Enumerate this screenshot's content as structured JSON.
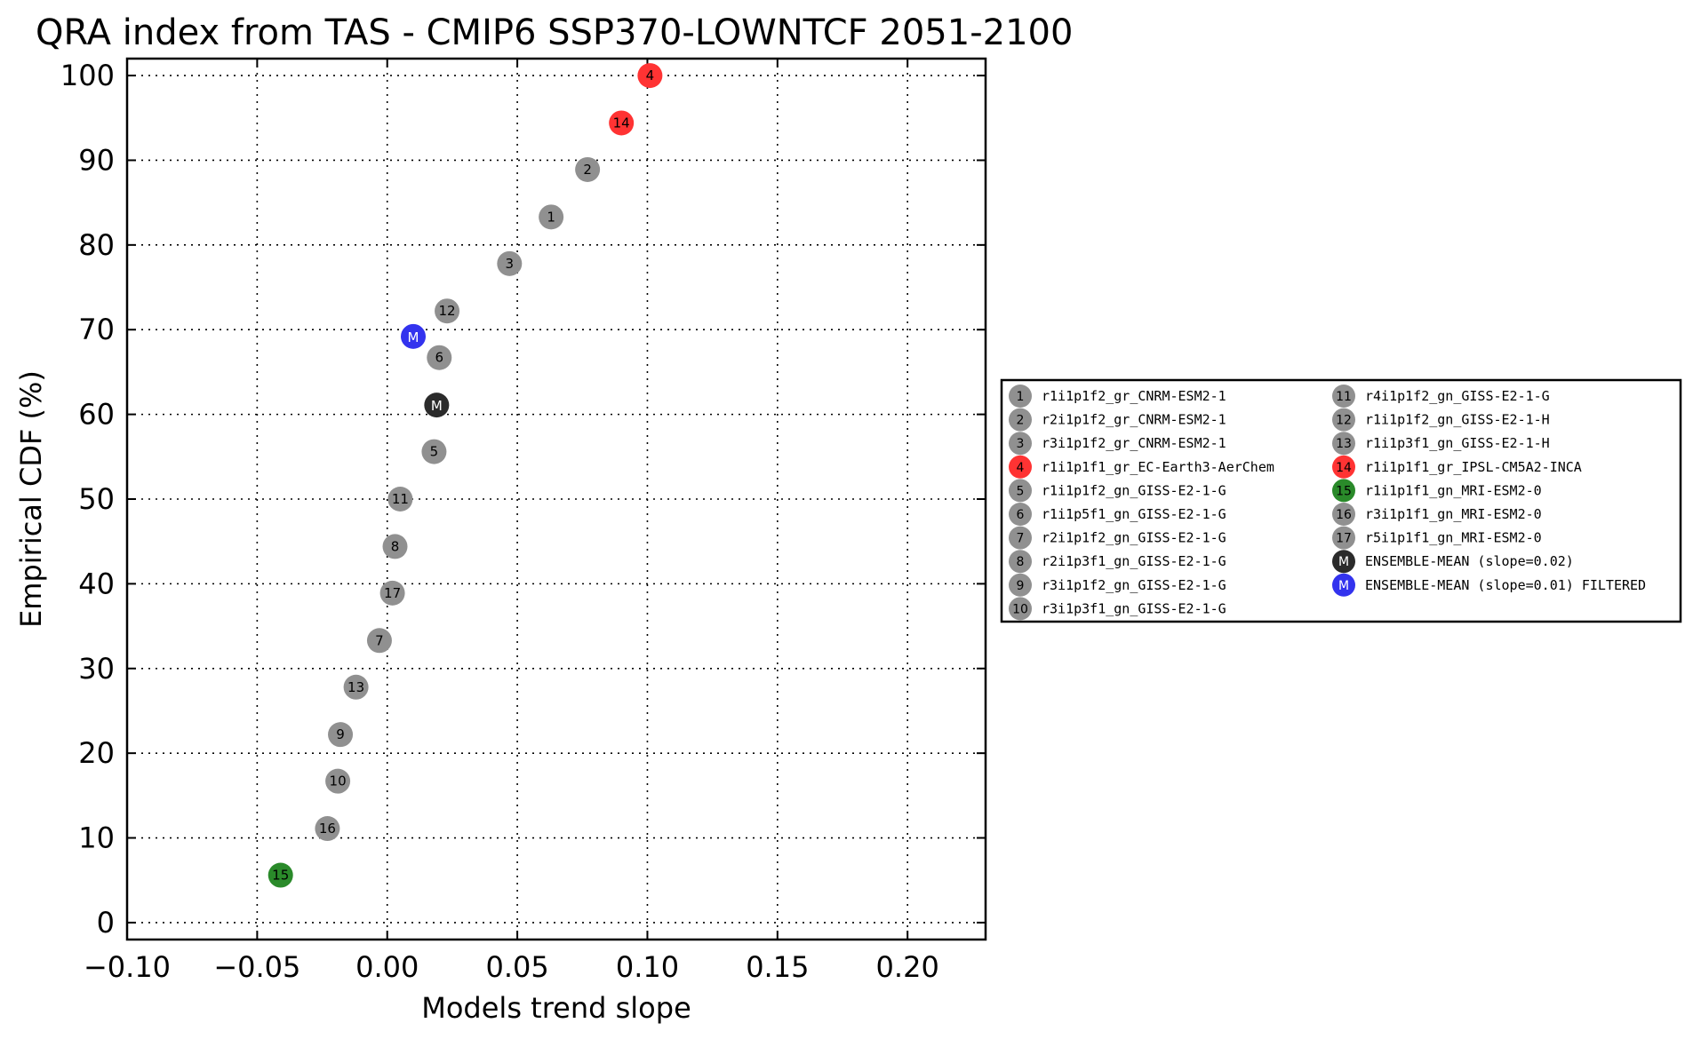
{
  "chart_data": {
    "type": "scatter",
    "title": "QRA index from TAS - CMIP6 SSP370-LOWNTCF 2051-2100",
    "xlabel": "Models trend slope",
    "ylabel": "Empirical CDF (%)",
    "xlim": [
      -0.1,
      0.23
    ],
    "ylim": [
      -2,
      102
    ],
    "x_ticks": [
      -0.1,
      -0.05,
      0.0,
      0.05,
      0.1,
      0.15,
      0.2
    ],
    "x_tick_labels": [
      "−0.10",
      "−0.05",
      "0.00",
      "0.05",
      "0.10",
      "0.15",
      "0.20"
    ],
    "y_ticks": [
      0,
      10,
      20,
      30,
      40,
      50,
      60,
      70,
      80,
      90,
      100
    ],
    "y_tick_labels": [
      "0",
      "10",
      "20",
      "30",
      "40",
      "50",
      "60",
      "70",
      "80",
      "90",
      "100"
    ],
    "grid": true,
    "legend_position": "right",
    "colors": {
      "default": "#909090",
      "high": "#ff3333",
      "low": "#2a8a2a",
      "ensemble": "#2b2b2b",
      "filtered": "#3333ee"
    },
    "points": [
      {
        "label": "15",
        "x": -0.041,
        "y": 5.6,
        "color": "#2a8a2a"
      },
      {
        "label": "16",
        "x": -0.023,
        "y": 11.1,
        "color": "#909090"
      },
      {
        "label": "10",
        "x": -0.019,
        "y": 16.7,
        "color": "#909090"
      },
      {
        "label": "9",
        "x": -0.018,
        "y": 22.2,
        "color": "#909090"
      },
      {
        "label": "13",
        "x": -0.012,
        "y": 27.8,
        "color": "#909090"
      },
      {
        "label": "7",
        "x": -0.003,
        "y": 33.3,
        "color": "#909090"
      },
      {
        "label": "17",
        "x": 0.002,
        "y": 38.9,
        "color": "#909090"
      },
      {
        "label": "8",
        "x": 0.003,
        "y": 44.4,
        "color": "#909090"
      },
      {
        "label": "11",
        "x": 0.005,
        "y": 50.0,
        "color": "#909090"
      },
      {
        "label": "5",
        "x": 0.018,
        "y": 55.6,
        "color": "#909090"
      },
      {
        "label": "M",
        "x": 0.019,
        "y": 61.1,
        "color": "#2b2b2b"
      },
      {
        "label": "6",
        "x": 0.02,
        "y": 66.7,
        "color": "#909090"
      },
      {
        "label": "M",
        "x": 0.01,
        "y": 69.2,
        "color": "#3333ee"
      },
      {
        "label": "12",
        "x": 0.023,
        "y": 72.2,
        "color": "#909090"
      },
      {
        "label": "3",
        "x": 0.047,
        "y": 77.8,
        "color": "#909090"
      },
      {
        "label": "1",
        "x": 0.063,
        "y": 83.3,
        "color": "#909090"
      },
      {
        "label": "2",
        "x": 0.077,
        "y": 88.9,
        "color": "#909090"
      },
      {
        "label": "14",
        "x": 0.09,
        "y": 94.4,
        "color": "#ff3333"
      },
      {
        "label": "4",
        "x": 0.101,
        "y": 100.0,
        "color": "#ff3333"
      }
    ],
    "legend": [
      {
        "num": "1",
        "text": "r1i1p1f2_gr_CNRM-ESM2-1",
        "color": "#909090"
      },
      {
        "num": "2",
        "text": "r2i1p1f2_gr_CNRM-ESM2-1",
        "color": "#909090"
      },
      {
        "num": "3",
        "text": "r3i1p1f2_gr_CNRM-ESM2-1",
        "color": "#909090"
      },
      {
        "num": "4",
        "text": "r1i1p1f1_gr_EC-Earth3-AerChem",
        "color": "#ff3333"
      },
      {
        "num": "5",
        "text": "r1i1p1f2_gn_GISS-E2-1-G",
        "color": "#909090"
      },
      {
        "num": "6",
        "text": "r1i1p5f1_gn_GISS-E2-1-G",
        "color": "#909090"
      },
      {
        "num": "7",
        "text": "r2i1p1f2_gn_GISS-E2-1-G",
        "color": "#909090"
      },
      {
        "num": "8",
        "text": "r2i1p3f1_gn_GISS-E2-1-G",
        "color": "#909090"
      },
      {
        "num": "9",
        "text": "r3i1p1f2_gn_GISS-E2-1-G",
        "color": "#909090"
      },
      {
        "num": "10",
        "text": "r3i1p3f1_gn_GISS-E2-1-G",
        "color": "#909090"
      },
      {
        "num": "11",
        "text": "r4i1p1f2_gn_GISS-E2-1-G",
        "color": "#909090"
      },
      {
        "num": "12",
        "text": "r1i1p1f2_gn_GISS-E2-1-H",
        "color": "#909090"
      },
      {
        "num": "13",
        "text": "r1i1p3f1_gn_GISS-E2-1-H",
        "color": "#909090"
      },
      {
        "num": "14",
        "text": "r1i1p1f1_gr_IPSL-CM5A2-INCA",
        "color": "#ff3333"
      },
      {
        "num": "15",
        "text": "r1i1p1f1_gn_MRI-ESM2-0",
        "color": "#2a8a2a"
      },
      {
        "num": "16",
        "text": "r3i1p1f1_gn_MRI-ESM2-0",
        "color": "#909090"
      },
      {
        "num": "17",
        "text": "r5i1p1f1_gn_MRI-ESM2-0",
        "color": "#909090"
      },
      {
        "num": "M",
        "text": "ENSEMBLE-MEAN (slope=0.02)",
        "color": "#2b2b2b"
      },
      {
        "num": "M",
        "text": "ENSEMBLE-MEAN (slope=0.01) FILTERED",
        "color": "#3333ee"
      }
    ]
  }
}
